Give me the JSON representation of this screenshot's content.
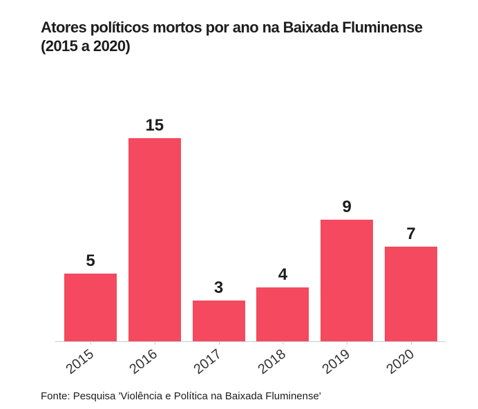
{
  "header": {
    "title": "Atores políticos mortos por ano na Baixada Fluminense (2015 a 2020)",
    "title_lines": [
      "Atores políticos mortos por ano na Baixada Fluminense",
      "(2015 a 2020)"
    ]
  },
  "footer": {
    "source": "Fonte: Pesquisa 'Violência e Política na Baixada Fluminense'"
  },
  "colors": {
    "bar": "#f4495e",
    "axis": "#cccccc",
    "title_text": "#1d1d1d",
    "value_label_text": "#1d1d1d",
    "tick_label_text": "#333333",
    "background": "#ffffff"
  },
  "chart_data": {
    "type": "bar",
    "categories": [
      "2015",
      "2016",
      "2017",
      "2018",
      "2019",
      "2020"
    ],
    "values": [
      5,
      15,
      3,
      4,
      9,
      7
    ],
    "title": "Atores políticos mortos por ano na Baixada Fluminense (2015 a 2020)",
    "source": "Fonte: Pesquisa 'Violência e Política na Baixada Fluminense'",
    "xlabel": "",
    "ylabel": "",
    "ylim": [
      0,
      15
    ],
    "grid": false,
    "legend": false,
    "value_labels": true,
    "bar_color": "#f4495e",
    "x_tick_rotation_deg": -38
  }
}
